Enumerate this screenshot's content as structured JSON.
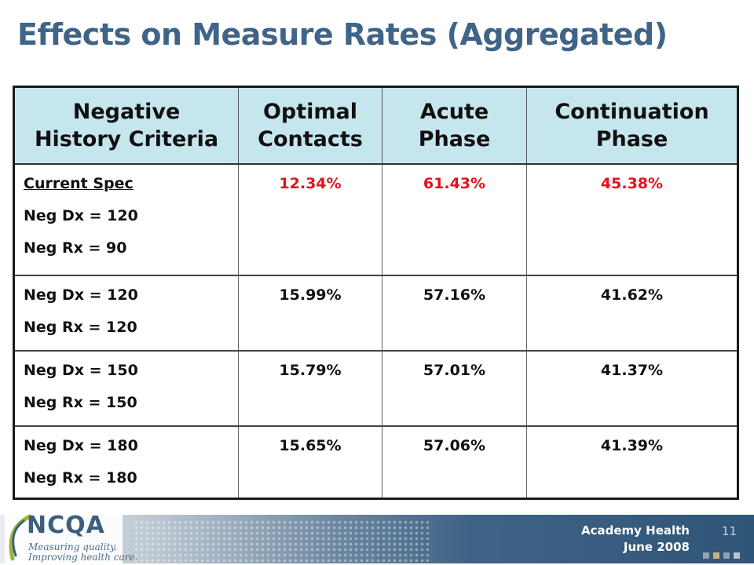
{
  "slide": {
    "title": "Effects on Measure Rates (Aggregated)"
  },
  "table": {
    "headers": [
      [
        "Negative",
        "History Criteria"
      ],
      [
        "Optimal",
        "Contacts"
      ],
      [
        "Acute",
        "Phase"
      ],
      [
        "Continuation",
        "Phase"
      ]
    ],
    "rows": [
      {
        "labels": [
          "Current Spec",
          "Neg Dx = 120",
          "Neg Rx = 90"
        ],
        "optimal_contacts": "12.34%",
        "acute_phase": "61.43%",
        "continuation_phase": "45.38%"
      },
      {
        "labels": [
          "Neg Dx = 120",
          "Neg Rx = 120"
        ],
        "optimal_contacts": "15.99%",
        "acute_phase": "57.16%",
        "continuation_phase": "41.62%"
      },
      {
        "labels": [
          "Neg Dx = 150",
          "Neg Rx = 150"
        ],
        "optimal_contacts": "15.79%",
        "acute_phase": "57.01%",
        "continuation_phase": "41.37%"
      },
      {
        "labels": [
          "Neg Dx = 180",
          "Neg Rx = 180"
        ],
        "optimal_contacts": "15.65%",
        "acute_phase": "57.06%",
        "continuation_phase": "41.39%"
      }
    ]
  },
  "footer": {
    "logo_name": "NCQA",
    "logo_tagline_1": "Measuring quality.",
    "logo_tagline_2": "Improving health care.",
    "org_line_1": "Academy Health",
    "org_line_2": "June 2008",
    "page_number": "11"
  },
  "colors": {
    "title": "#3f6487",
    "header_fill": "#c6e6ee",
    "highlight_red": "#e3121b",
    "nav_squares": [
      "#8fa3b5",
      "#c9b27a",
      "#8fa3b5",
      "#b9c4cf"
    ]
  }
}
